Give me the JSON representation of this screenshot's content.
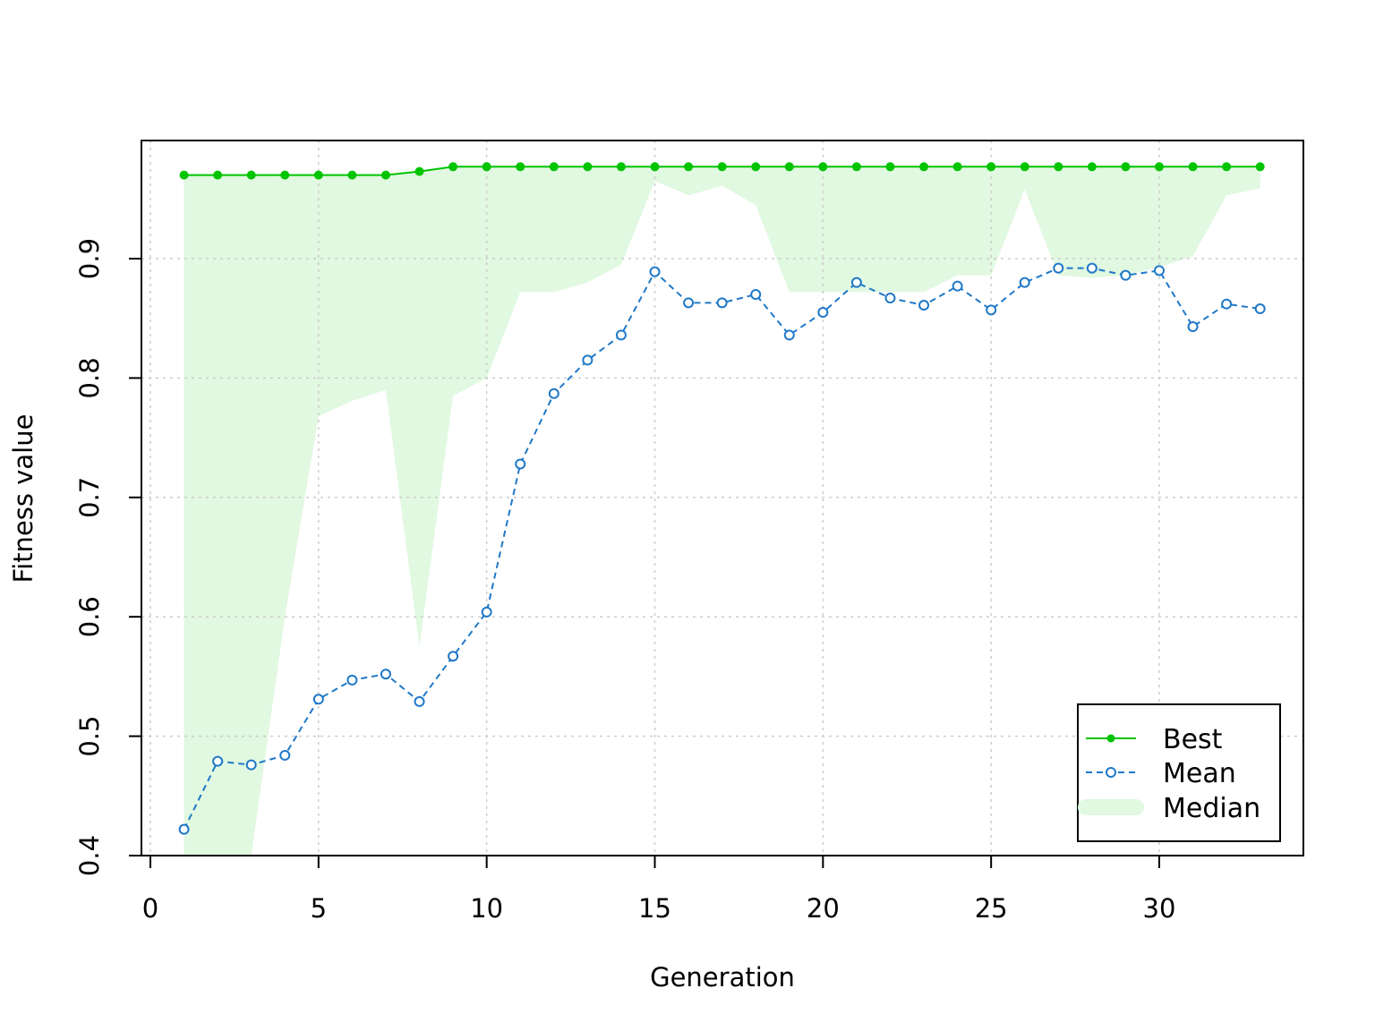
{
  "chart_data": {
    "type": "line",
    "xlabel": "Generation",
    "ylabel": "Fitness value",
    "xlim": [
      0,
      33
    ],
    "ylim": [
      0.4,
      0.98
    ],
    "x_ticks": [
      0,
      5,
      10,
      15,
      20,
      25,
      30
    ],
    "y_ticks": [
      0.4,
      0.5,
      0.6,
      0.7,
      0.8,
      0.9
    ],
    "x_tick_labels": [
      "0",
      "5",
      "10",
      "15",
      "20",
      "25",
      "30"
    ],
    "y_tick_labels": [
      "0.4",
      "0.5",
      "0.6",
      "0.7",
      "0.8",
      "0.9"
    ],
    "grid": true,
    "legend_position": "bottom-right",
    "x": [
      1,
      2,
      3,
      4,
      5,
      6,
      7,
      8,
      9,
      10,
      11,
      12,
      13,
      14,
      15,
      16,
      17,
      18,
      19,
      20,
      21,
      22,
      23,
      24,
      25,
      26,
      27,
      28,
      29,
      30,
      31,
      32,
      33
    ],
    "series": [
      {
        "name": "Best",
        "style": "solid line with filled points",
        "color": "#00c400",
        "values": [
          0.97,
          0.97,
          0.97,
          0.97,
          0.97,
          0.97,
          0.97,
          0.973,
          0.977,
          0.977,
          0.977,
          0.977,
          0.977,
          0.977,
          0.977,
          0.977,
          0.977,
          0.977,
          0.977,
          0.977,
          0.977,
          0.977,
          0.977,
          0.977,
          0.977,
          0.977,
          0.977,
          0.977,
          0.977,
          0.977,
          0.977,
          0.977,
          0.977
        ]
      },
      {
        "name": "Mean",
        "style": "dashed line with open circles",
        "color": "#1f78c8",
        "values": [
          0.422,
          0.479,
          0.476,
          0.484,
          0.531,
          0.547,
          0.552,
          0.529,
          0.567,
          0.604,
          0.728,
          0.787,
          0.815,
          0.836,
          0.889,
          0.863,
          0.863,
          0.87,
          0.836,
          0.855,
          0.88,
          0.867,
          0.861,
          0.877,
          0.857,
          0.88,
          0.892,
          0.892,
          0.886,
          0.89,
          0.843,
          0.862,
          0.858
        ]
      },
      {
        "name": "Median",
        "style": "filled band between median and best",
        "color": "#e1f8e1",
        "values": [
          0.4,
          0.4,
          0.4,
          0.6,
          0.768,
          0.781,
          0.79,
          0.575,
          0.785,
          0.8,
          0.872,
          0.872,
          0.88,
          0.895,
          0.965,
          0.953,
          0.961,
          0.945,
          0.872,
          0.872,
          0.872,
          0.872,
          0.872,
          0.886,
          0.886,
          0.958,
          0.886,
          0.884,
          0.886,
          0.893,
          0.902,
          0.953,
          0.959
        ]
      }
    ]
  }
}
